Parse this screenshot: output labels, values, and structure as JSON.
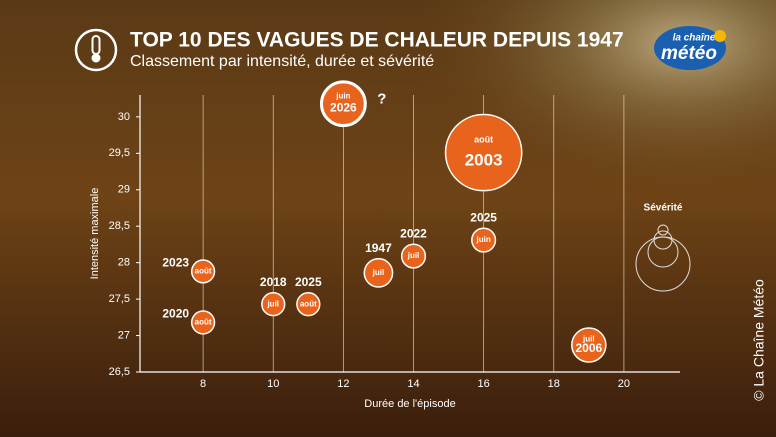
{
  "brand": {
    "line1": "la chaîne",
    "line2": "météo"
  },
  "copyright": "© La Chaîne Météo",
  "chart_data": {
    "type": "bubble",
    "title": "TOP 10 DES VAGUES DE CHALEUR DEPUIS 1947",
    "subtitle": "Classement par intensité, durée et sévérité",
    "x_label": "Durée de l'épisode",
    "y_label": "Intensité maximale",
    "legend_title": "Sévérité",
    "annotation": "?",
    "color": "#e8641c",
    "x": [
      8,
      8,
      10,
      11,
      12,
      13,
      14,
      16,
      16,
      19
    ],
    "values": [
      27.88,
      27.18,
      27.43,
      27.43,
      30.18,
      27.86,
      28.09,
      28.31,
      29.51,
      26.87
    ],
    "sizes": [
      130,
      130,
      130,
      130,
      480,
      200,
      140,
      140,
      1450,
      290
    ],
    "months": [
      "août",
      "août",
      "juil",
      "août",
      "juin",
      "juil",
      "juil",
      "juin",
      "août",
      "juil"
    ],
    "years": [
      "2023",
      "2020",
      "2018",
      "2025",
      "2026",
      "1947",
      "2022",
      "2025",
      "2003",
      "2006"
    ],
    "xlim": [
      6.2,
      21.6
    ],
    "ylim": [
      26.5,
      30.3
    ],
    "xticks": [
      8,
      10,
      12,
      14,
      16,
      18,
      20
    ],
    "yticks": [
      {
        "value": 26.5,
        "label": "26,5"
      },
      27,
      {
        "value": 27.5,
        "label": "27,5"
      },
      28,
      {
        "value": 28.5,
        "label": "28,5"
      },
      29,
      {
        "value": 29.5,
        "label": "29,5"
      },
      30
    ],
    "grid": true
  }
}
